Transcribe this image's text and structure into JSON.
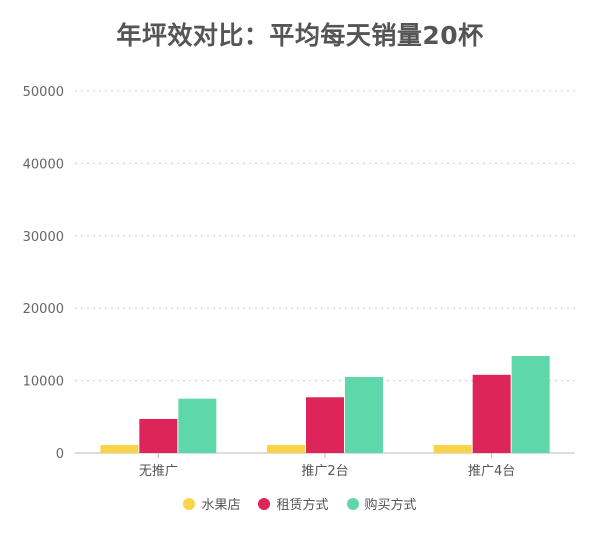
{
  "chart_data": {
    "type": "bar",
    "title": "年坪效对比：平均每天销量20杯",
    "xlabel": "",
    "ylabel": "",
    "categories": [
      "无推广",
      "推广2台",
      "推广4台"
    ],
    "series": [
      {
        "name": "水果店",
        "color": "#F9D448",
        "values": [
          1100,
          1100,
          1100
        ]
      },
      {
        "name": "租赁方式",
        "color": "#DD2559",
        "values": [
          4700,
          7700,
          10800
        ]
      },
      {
        "name": "购买方式",
        "color": "#5ED8AA",
        "values": [
          7500,
          10500,
          13400
        ]
      }
    ],
    "ylim": [
      0,
      50000
    ],
    "yticks": [
      0,
      10000,
      20000,
      30000,
      40000,
      50000
    ],
    "grid": true,
    "legend_position": "bottom"
  }
}
